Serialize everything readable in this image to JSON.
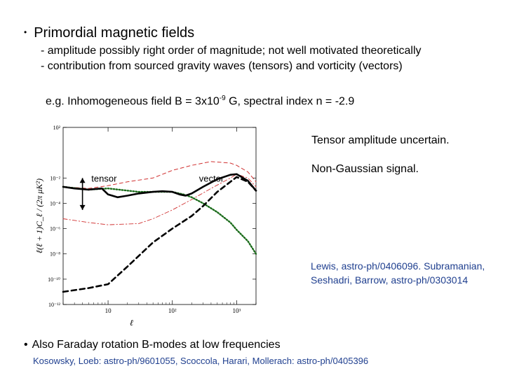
{
  "slide": {
    "title": "Primordial magnetic fields",
    "bullets": [
      "- amplitude possibly right order of magnitude; not well motivated theoretically",
      "- contribution from sourced gravity waves (tensors) and vorticity (vectors)"
    ],
    "example_prefix": "e.g. Inhomogeneous field B = 3x10",
    "example_exponent": "-9",
    "example_suffix": " G, spectral index n = -2.9",
    "notes": [
      "Tensor amplitude uncertain.",
      "Non-Gaussian signal."
    ],
    "refs": "Lewis, astro-ph/0406096. Subramanian, Seshadri, Barrow, astro-ph/0303014",
    "bottom_bullet": "Also Faraday rotation B-modes at low frequencies",
    "bottom_ref": "Kosowsky, Loeb: astro-ph/9601055, Scoccola, Harari, Mollerach: astro-ph/0405396"
  },
  "chart_data": {
    "type": "line",
    "xlabel": "ℓ",
    "ylabel": "ℓ(ℓ + 1)C_ℓ / (2π μK²)",
    "xscale": "log",
    "yscale": "log",
    "xlim": [
      2,
      2000
    ],
    "ylim": [
      1e-12,
      100
    ],
    "x_ticks": [
      "10",
      "10²",
      "10³"
    ],
    "y_ticks": [
      "10²",
      "10⁻²",
      "10⁻⁴",
      "10⁻⁶",
      "10⁻⁸",
      "10⁻¹⁰",
      "10⁻¹²"
    ],
    "annotations": [
      "tensor",
      "vector"
    ],
    "series": [
      {
        "style": "solid-black-thick",
        "x": [
          2,
          3,
          5,
          8,
          10,
          14,
          20,
          30,
          50,
          70,
          100,
          130,
          160,
          200,
          300,
          500,
          800,
          1000,
          1500,
          2000
        ],
        "y": [
          0.002,
          0.0015,
          0.0012,
          0.0015,
          0.0005,
          0.0003,
          0.0004,
          0.0006,
          0.0008,
          0.0009,
          0.0008,
          0.0005,
          0.0004,
          0.0006,
          0.002,
          0.008,
          0.018,
          0.02,
          0.006,
          0.001
        ]
      },
      {
        "style": "dashed-black-thick",
        "x": [
          2,
          5,
          10,
          20,
          50,
          100,
          200,
          300,
          500,
          800,
          1000,
          1500,
          2000
        ],
        "y": [
          1e-11,
          2e-11,
          4e-11,
          1e-09,
          8e-08,
          1e-06,
          1e-05,
          6e-05,
          0.0008,
          0.005,
          0.012,
          0.005,
          0.001
        ]
      },
      {
        "style": "dotted-green",
        "x": [
          2,
          5,
          10,
          30,
          50,
          100,
          150,
          200,
          300,
          500,
          800,
          1000,
          1500,
          2000
        ],
        "y": [
          0.002,
          0.0012,
          0.0015,
          0.0008,
          0.0008,
          0.0008,
          0.0005,
          0.0003,
          0.0001,
          2e-05,
          3e-06,
          8e-07,
          1e-07,
          1e-08
        ]
      },
      {
        "style": "dashed-red",
        "x": [
          2,
          5,
          10,
          20,
          50,
          100,
          200,
          400,
          800,
          1000,
          1500,
          2000
        ],
        "y": [
          0.002,
          0.0015,
          0.0025,
          0.005,
          0.01,
          0.04,
          0.1,
          0.2,
          0.15,
          0.1,
          0.03,
          0.005
        ]
      },
      {
        "style": "dashdot-red",
        "x": [
          2,
          5,
          10,
          30,
          50,
          100,
          200,
          400,
          800,
          1000,
          1500,
          2000
        ],
        "y": [
          6e-06,
          3e-06,
          2e-06,
          2.5e-06,
          6e-06,
          3e-05,
          0.0002,
          0.0015,
          0.01,
          0.02,
          0.01,
          0.002
        ]
      }
    ]
  }
}
